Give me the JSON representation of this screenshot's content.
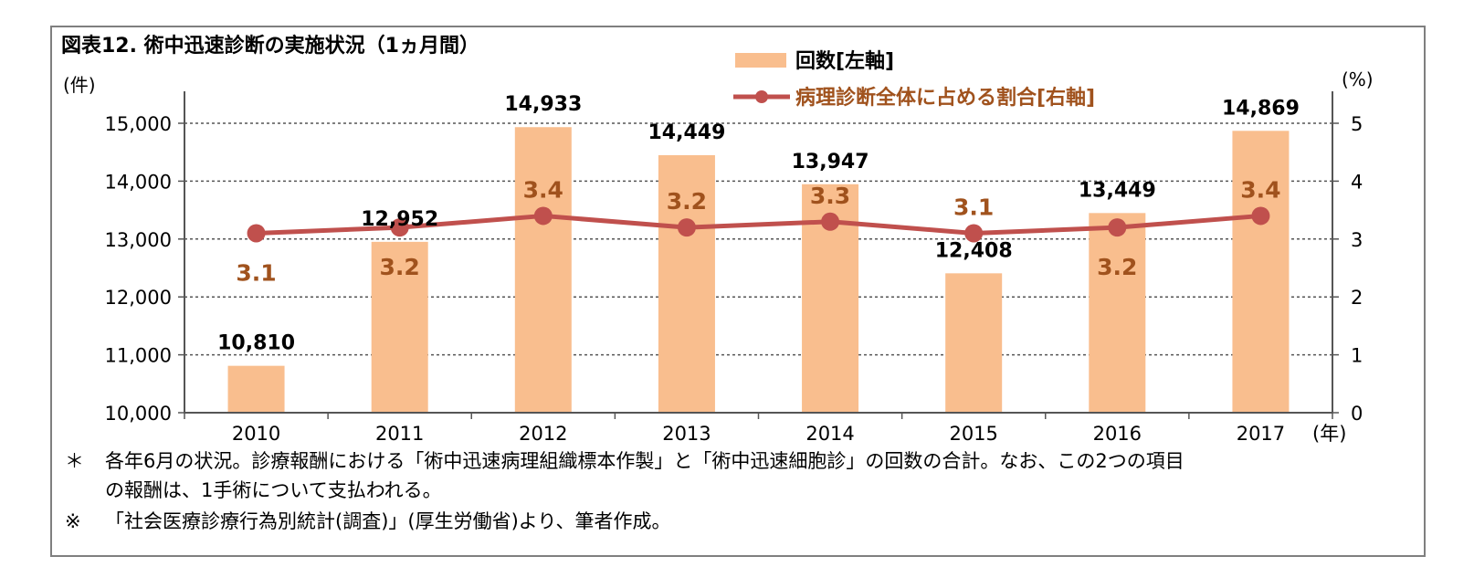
{
  "chart_data": {
    "type": "bar+line",
    "title": "図表12. 術中迅速診断の実施状況（1ヵ月間）",
    "left_axis_unit": "(件)",
    "right_axis_unit": "(%)",
    "x_axis_unit": "(年)",
    "categories": [
      "2010",
      "2011",
      "2012",
      "2013",
      "2014",
      "2015",
      "2016",
      "2017"
    ],
    "series": [
      {
        "name": "回数[左軸]",
        "type": "bar",
        "axis": "left",
        "color": "#f9be8e",
        "values": [
          10810,
          12952,
          14933,
          14449,
          13947,
          12408,
          13449,
          14869
        ],
        "labels": [
          "10,810",
          "12,952",
          "14,933",
          "14,449",
          "13,947",
          "12,408",
          "13,449",
          "14,869"
        ]
      },
      {
        "name": "病理診断全体に占める割合[右軸]",
        "type": "line",
        "axis": "right",
        "color": "#c0504d",
        "label_color": "#a0521d",
        "values": [
          3.1,
          3.2,
          3.4,
          3.2,
          3.3,
          3.1,
          3.2,
          3.4
        ],
        "labels": [
          "3.1",
          "3.2",
          "3.4",
          "3.2",
          "3.3",
          "3.1",
          "3.2",
          "3.4"
        ]
      }
    ],
    "left_ylim": [
      10000,
      15000
    ],
    "left_ticks": [
      10000,
      11000,
      12000,
      13000,
      14000,
      15000
    ],
    "left_tick_labels": [
      "10,000",
      "11,000",
      "12,000",
      "13,000",
      "14,000",
      "15,000"
    ],
    "right_ylim": [
      0,
      5
    ],
    "right_ticks": [
      0,
      1,
      2,
      3,
      4,
      5
    ],
    "right_tick_labels": [
      "0",
      "1",
      "2",
      "3",
      "4",
      "5"
    ],
    "grid": "horizontal-dashed",
    "legend_position": "top-right"
  },
  "notes": {
    "line1_mark": "＊",
    "line1": "各年6月の状況。診療報酬における「術中迅速病理組織標本作製」と「術中迅速細胞診」の回数の合計。なお、この2つの項目",
    "line2": "の報酬は、1手術について支払われる。",
    "line3_mark": "※",
    "line3": "「社会医療診療行為別統計(調査)」(厚生労働省)より、筆者作成。"
  }
}
